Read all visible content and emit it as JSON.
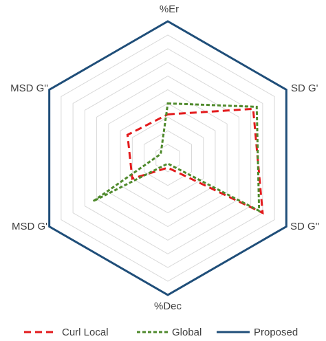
{
  "chart_data": {
    "type": "radar",
    "title": "",
    "axes": [
      "%Er",
      "SD G'",
      "SD G''",
      "%Dec",
      "MSD G'",
      "MSD G''"
    ],
    "range": [
      0,
      1
    ],
    "grid_levels": 10,
    "grid": true,
    "legend_position": "bottom",
    "series": [
      {
        "name": "Curl Local",
        "values": [
          0.32,
          0.72,
          0.8,
          0.07,
          0.3,
          0.34
        ],
        "color": "#e31a1c",
        "dash": "long-dash"
      },
      {
        "name": "Global",
        "values": [
          0.4,
          0.75,
          0.77,
          0.04,
          0.63,
          0.06
        ],
        "color": "#4f8a2c",
        "dash": "dashed"
      },
      {
        "name": "Proposed",
        "values": [
          1,
          1,
          1,
          1,
          1,
          1
        ],
        "color": "#1f4e79",
        "dash": "solid"
      }
    ]
  }
}
